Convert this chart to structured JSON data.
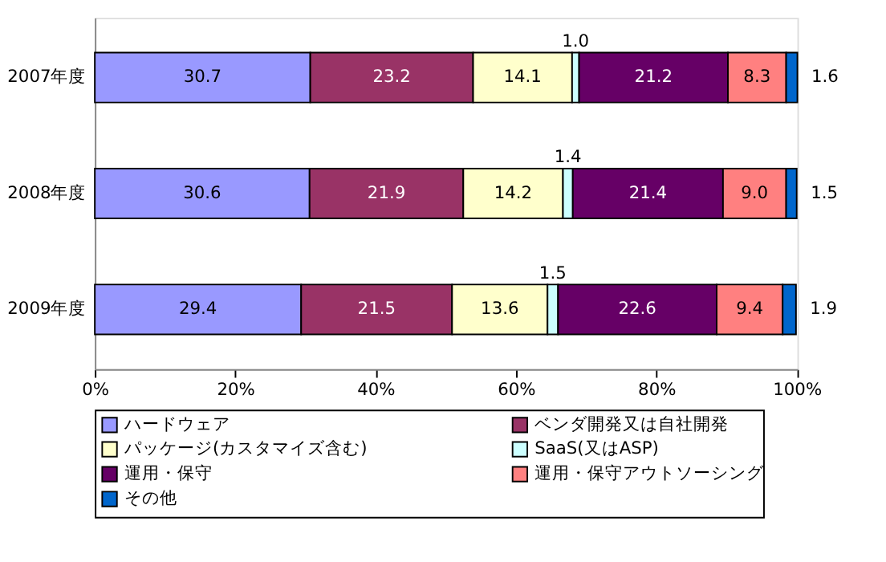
{
  "chart_data": {
    "type": "bar",
    "orientation": "horizontal",
    "stacked": true,
    "data_labels": true,
    "grid": false,
    "legend": "bottom",
    "categories": [
      "2007年度",
      "2008年度",
      "2009年度"
    ],
    "xlim": [
      0,
      100.1
    ],
    "xticks": [
      {
        "value": 0,
        "label": "0%"
      },
      {
        "value": 20,
        "label": "20%"
      },
      {
        "value": 40,
        "label": "40%"
      },
      {
        "value": 60,
        "label": "60%"
      },
      {
        "value": 80,
        "label": "80%"
      },
      {
        "value": 100,
        "label": "100%"
      }
    ],
    "series": [
      {
        "name": "ハードウェア",
        "color": "#9999ff",
        "values": [
          30.7,
          30.6,
          29.4
        ]
      },
      {
        "name": "ベンダ開発又は自社開発",
        "color": "#993366",
        "values": [
          23.2,
          21.9,
          21.5
        ]
      },
      {
        "name": "パッケージ(カスタマイズ含む)",
        "color": "#ffffcc",
        "values": [
          14.1,
          14.2,
          13.6
        ]
      },
      {
        "name": "SaaS(又はASP)",
        "color": "#ccffff",
        "values": [
          1.0,
          1.4,
          1.5
        ],
        "value_labels": [
          "1.0",
          "1.4",
          "1.5"
        ]
      },
      {
        "name": "運用・保守",
        "color": "#660066",
        "values": [
          21.2,
          21.4,
          22.6
        ]
      },
      {
        "name": "運用・保守アウトソーシング",
        "color": "#ff8080",
        "values": [
          8.3,
          9.0,
          9.4
        ],
        "value_labels": [
          "8.3",
          "9.0",
          "9.4"
        ]
      },
      {
        "name": "その他",
        "color": "#0066cc",
        "values": [
          1.6,
          1.5,
          1.9
        ]
      }
    ]
  }
}
